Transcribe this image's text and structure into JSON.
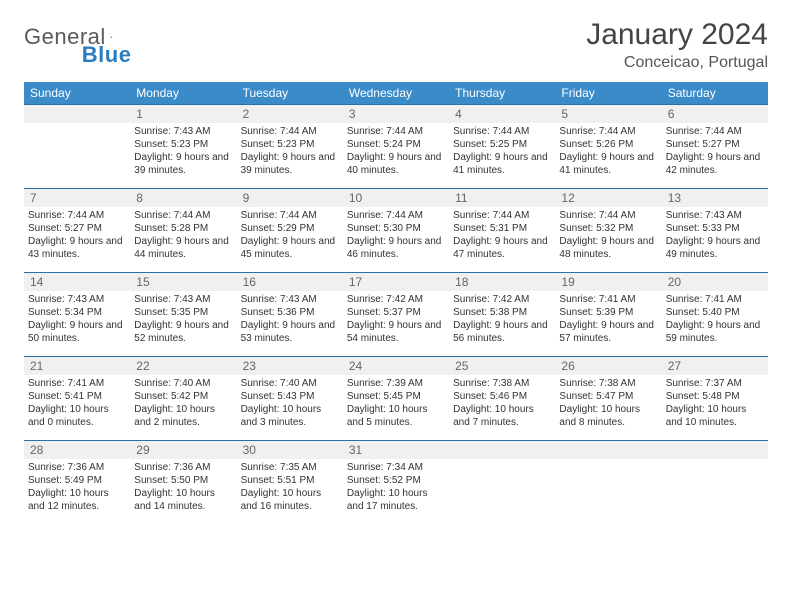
{
  "brand": {
    "part1": "General",
    "part2": "Blue"
  },
  "title": "January 2024",
  "location": "Conceicao, Portugal",
  "colors": {
    "header_bg": "#3b8bc9",
    "header_text": "#ffffff",
    "daynum_bg": "#eef0f2",
    "row_border": "#2b6fa8",
    "body_text": "#333333",
    "title_text": "#444444"
  },
  "day_labels": [
    "Sunday",
    "Monday",
    "Tuesday",
    "Wednesday",
    "Thursday",
    "Friday",
    "Saturday"
  ],
  "weeks": [
    [
      {
        "n": "",
        "sunrise": "",
        "sunset": "",
        "daylight": ""
      },
      {
        "n": "1",
        "sunrise": "7:43 AM",
        "sunset": "5:23 PM",
        "daylight": "9 hours and 39 minutes."
      },
      {
        "n": "2",
        "sunrise": "7:44 AM",
        "sunset": "5:23 PM",
        "daylight": "9 hours and 39 minutes."
      },
      {
        "n": "3",
        "sunrise": "7:44 AM",
        "sunset": "5:24 PM",
        "daylight": "9 hours and 40 minutes."
      },
      {
        "n": "4",
        "sunrise": "7:44 AM",
        "sunset": "5:25 PM",
        "daylight": "9 hours and 41 minutes."
      },
      {
        "n": "5",
        "sunrise": "7:44 AM",
        "sunset": "5:26 PM",
        "daylight": "9 hours and 41 minutes."
      },
      {
        "n": "6",
        "sunrise": "7:44 AM",
        "sunset": "5:27 PM",
        "daylight": "9 hours and 42 minutes."
      }
    ],
    [
      {
        "n": "7",
        "sunrise": "7:44 AM",
        "sunset": "5:27 PM",
        "daylight": "9 hours and 43 minutes."
      },
      {
        "n": "8",
        "sunrise": "7:44 AM",
        "sunset": "5:28 PM",
        "daylight": "9 hours and 44 minutes."
      },
      {
        "n": "9",
        "sunrise": "7:44 AM",
        "sunset": "5:29 PM",
        "daylight": "9 hours and 45 minutes."
      },
      {
        "n": "10",
        "sunrise": "7:44 AM",
        "sunset": "5:30 PM",
        "daylight": "9 hours and 46 minutes."
      },
      {
        "n": "11",
        "sunrise": "7:44 AM",
        "sunset": "5:31 PM",
        "daylight": "9 hours and 47 minutes."
      },
      {
        "n": "12",
        "sunrise": "7:44 AM",
        "sunset": "5:32 PM",
        "daylight": "9 hours and 48 minutes."
      },
      {
        "n": "13",
        "sunrise": "7:43 AM",
        "sunset": "5:33 PM",
        "daylight": "9 hours and 49 minutes."
      }
    ],
    [
      {
        "n": "14",
        "sunrise": "7:43 AM",
        "sunset": "5:34 PM",
        "daylight": "9 hours and 50 minutes."
      },
      {
        "n": "15",
        "sunrise": "7:43 AM",
        "sunset": "5:35 PM",
        "daylight": "9 hours and 52 minutes."
      },
      {
        "n": "16",
        "sunrise": "7:43 AM",
        "sunset": "5:36 PM",
        "daylight": "9 hours and 53 minutes."
      },
      {
        "n": "17",
        "sunrise": "7:42 AM",
        "sunset": "5:37 PM",
        "daylight": "9 hours and 54 minutes."
      },
      {
        "n": "18",
        "sunrise": "7:42 AM",
        "sunset": "5:38 PM",
        "daylight": "9 hours and 56 minutes."
      },
      {
        "n": "19",
        "sunrise": "7:41 AM",
        "sunset": "5:39 PM",
        "daylight": "9 hours and 57 minutes."
      },
      {
        "n": "20",
        "sunrise": "7:41 AM",
        "sunset": "5:40 PM",
        "daylight": "9 hours and 59 minutes."
      }
    ],
    [
      {
        "n": "21",
        "sunrise": "7:41 AM",
        "sunset": "5:41 PM",
        "daylight": "10 hours and 0 minutes."
      },
      {
        "n": "22",
        "sunrise": "7:40 AM",
        "sunset": "5:42 PM",
        "daylight": "10 hours and 2 minutes."
      },
      {
        "n": "23",
        "sunrise": "7:40 AM",
        "sunset": "5:43 PM",
        "daylight": "10 hours and 3 minutes."
      },
      {
        "n": "24",
        "sunrise": "7:39 AM",
        "sunset": "5:45 PM",
        "daylight": "10 hours and 5 minutes."
      },
      {
        "n": "25",
        "sunrise": "7:38 AM",
        "sunset": "5:46 PM",
        "daylight": "10 hours and 7 minutes."
      },
      {
        "n": "26",
        "sunrise": "7:38 AM",
        "sunset": "5:47 PM",
        "daylight": "10 hours and 8 minutes."
      },
      {
        "n": "27",
        "sunrise": "7:37 AM",
        "sunset": "5:48 PM",
        "daylight": "10 hours and 10 minutes."
      }
    ],
    [
      {
        "n": "28",
        "sunrise": "7:36 AM",
        "sunset": "5:49 PM",
        "daylight": "10 hours and 12 minutes."
      },
      {
        "n": "29",
        "sunrise": "7:36 AM",
        "sunset": "5:50 PM",
        "daylight": "10 hours and 14 minutes."
      },
      {
        "n": "30",
        "sunrise": "7:35 AM",
        "sunset": "5:51 PM",
        "daylight": "10 hours and 16 minutes."
      },
      {
        "n": "31",
        "sunrise": "7:34 AM",
        "sunset": "5:52 PM",
        "daylight": "10 hours and 17 minutes."
      },
      {
        "n": "",
        "sunrise": "",
        "sunset": "",
        "daylight": ""
      },
      {
        "n": "",
        "sunrise": "",
        "sunset": "",
        "daylight": ""
      },
      {
        "n": "",
        "sunrise": "",
        "sunset": "",
        "daylight": ""
      }
    ]
  ],
  "labels": {
    "sunrise": "Sunrise: ",
    "sunset": "Sunset: ",
    "daylight": "Daylight: "
  }
}
